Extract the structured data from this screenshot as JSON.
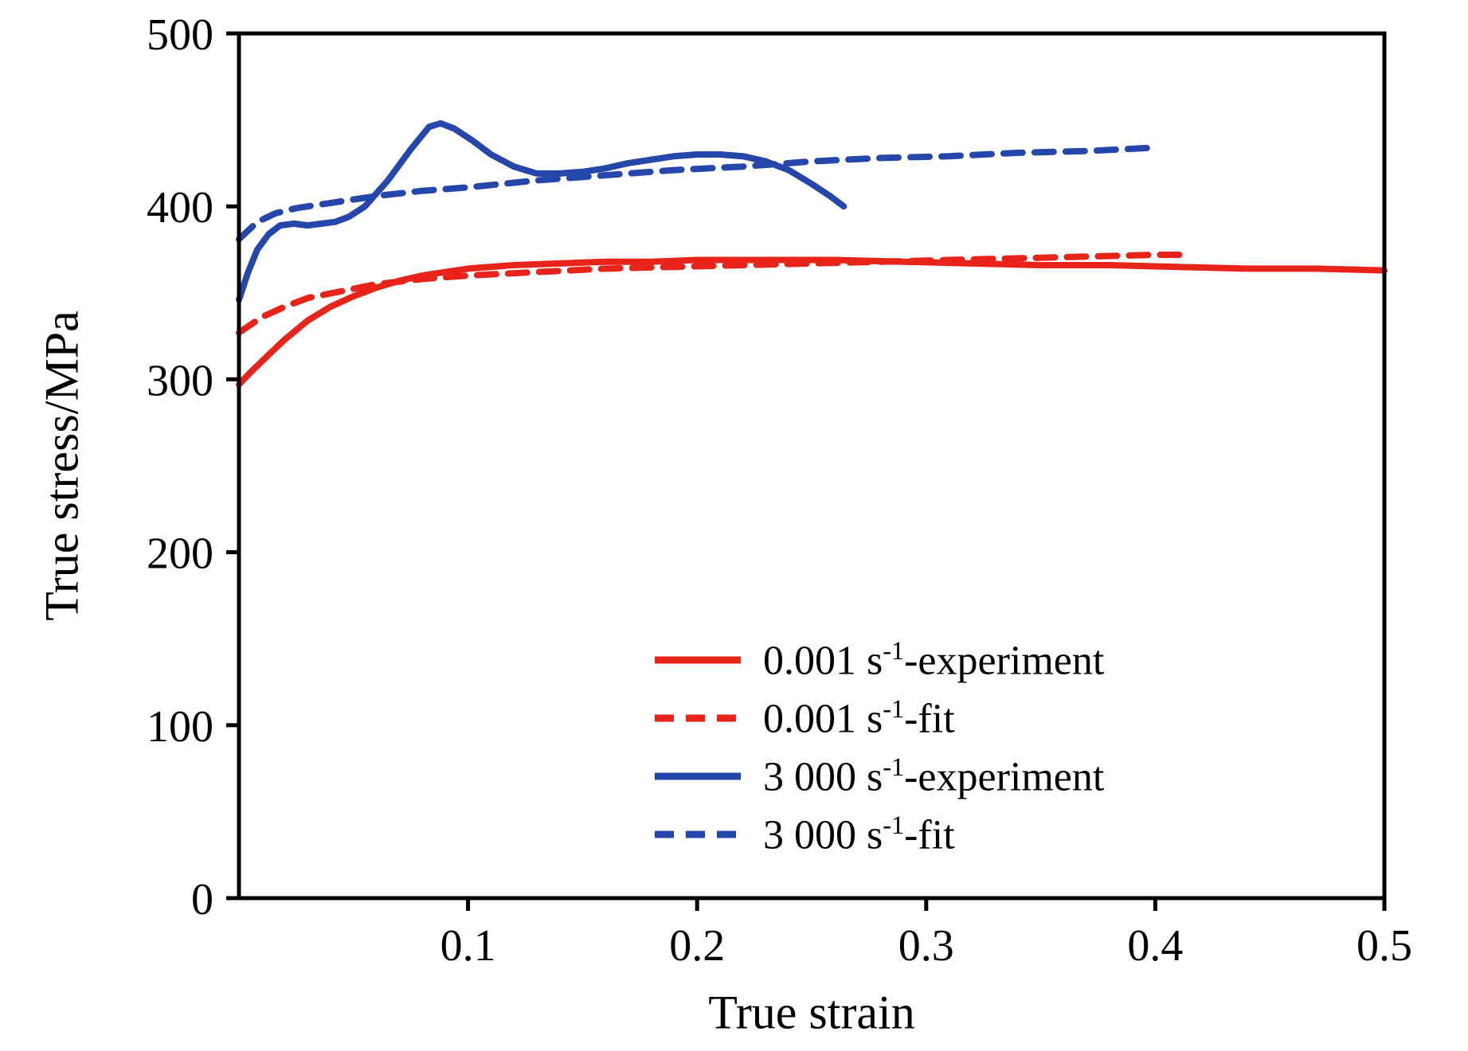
{
  "figure": {
    "background": "#ffffff",
    "axis_color": "#000000"
  },
  "chart_data": {
    "type": "line",
    "title": "",
    "xlabel": "True strain",
    "ylabel": "True stress/MPa",
    "xlim": [
      0,
      0.5
    ],
    "ylim": [
      0,
      500
    ],
    "x_ticks": [
      0.1,
      0.2,
      0.3,
      0.4,
      0.5
    ],
    "x_tick_labels": [
      "0.1",
      "0.2",
      "0.3",
      "0.4",
      "0.5"
    ],
    "y_ticks": [
      0,
      100,
      200,
      300,
      400,
      500
    ],
    "y_tick_labels": [
      "0",
      "100",
      "200",
      "300",
      "400",
      "500"
    ],
    "grid": false,
    "legend_position": "inside lower right",
    "series": [
      {
        "name": "0.001 s⁻¹-experiment",
        "label_parts": {
          "pre": "0.001 s",
          "sup": "-1",
          "post": "-experiment"
        },
        "color": "#e8231a",
        "dash": false,
        "points": [
          [
            0,
            297
          ],
          [
            0.005,
            304
          ],
          [
            0.012,
            313
          ],
          [
            0.02,
            323
          ],
          [
            0.03,
            334
          ],
          [
            0.04,
            342
          ],
          [
            0.05,
            348
          ],
          [
            0.06,
            353
          ],
          [
            0.07,
            357
          ],
          [
            0.08,
            360
          ],
          [
            0.09,
            362
          ],
          [
            0.1,
            364
          ],
          [
            0.12,
            366
          ],
          [
            0.14,
            367
          ],
          [
            0.16,
            368
          ],
          [
            0.18,
            368
          ],
          [
            0.2,
            369
          ],
          [
            0.23,
            369
          ],
          [
            0.26,
            369
          ],
          [
            0.29,
            368
          ],
          [
            0.32,
            367
          ],
          [
            0.35,
            366
          ],
          [
            0.38,
            366
          ],
          [
            0.41,
            365
          ],
          [
            0.44,
            364
          ],
          [
            0.47,
            364
          ],
          [
            0.5,
            363
          ]
        ]
      },
      {
        "name": "0.001 s⁻¹-fit",
        "label_parts": {
          "pre": "0.001 s",
          "sup": "-1",
          "post": "-fit"
        },
        "color": "#e8231a",
        "dash": true,
        "points": [
          [
            0,
            327
          ],
          [
            0.01,
            336
          ],
          [
            0.02,
            342
          ],
          [
            0.03,
            347
          ],
          [
            0.045,
            351
          ],
          [
            0.06,
            355
          ],
          [
            0.08,
            358
          ],
          [
            0.1,
            360
          ],
          [
            0.13,
            362
          ],
          [
            0.16,
            364
          ],
          [
            0.19,
            365
          ],
          [
            0.22,
            366
          ],
          [
            0.25,
            367
          ],
          [
            0.28,
            368
          ],
          [
            0.31,
            369
          ],
          [
            0.34,
            370
          ],
          [
            0.37,
            371
          ],
          [
            0.4,
            372
          ],
          [
            0.415,
            372
          ]
        ]
      },
      {
        "name": "3 000 s⁻¹-experiment",
        "label_parts": {
          "pre": "3 000 s",
          "sup": "-1",
          "post": "-experiment"
        },
        "color": "#2546aa",
        "dash": false,
        "points": [
          [
            0,
            346
          ],
          [
            0.004,
            362
          ],
          [
            0.008,
            375
          ],
          [
            0.013,
            384
          ],
          [
            0.018,
            389
          ],
          [
            0.024,
            390
          ],
          [
            0.03,
            389
          ],
          [
            0.036,
            390
          ],
          [
            0.042,
            391
          ],
          [
            0.048,
            394
          ],
          [
            0.055,
            400
          ],
          [
            0.065,
            415
          ],
          [
            0.075,
            433
          ],
          [
            0.083,
            446
          ],
          [
            0.088,
            448
          ],
          [
            0.094,
            445
          ],
          [
            0.102,
            438
          ],
          [
            0.11,
            430
          ],
          [
            0.12,
            423
          ],
          [
            0.13,
            419
          ],
          [
            0.14,
            419
          ],
          [
            0.15,
            420
          ],
          [
            0.16,
            422
          ],
          [
            0.17,
            425
          ],
          [
            0.18,
            427
          ],
          [
            0.19,
            429
          ],
          [
            0.2,
            430
          ],
          [
            0.21,
            430
          ],
          [
            0.22,
            429
          ],
          [
            0.23,
            426
          ],
          [
            0.24,
            421
          ],
          [
            0.25,
            413
          ],
          [
            0.258,
            406
          ],
          [
            0.264,
            400
          ]
        ]
      },
      {
        "name": "3 000 s⁻¹-fit",
        "label_parts": {
          "pre": "3 000 s",
          "sup": "-1",
          "post": "-fit"
        },
        "color": "#2546aa",
        "dash": true,
        "points": [
          [
            0,
            381
          ],
          [
            0.008,
            391
          ],
          [
            0.016,
            396
          ],
          [
            0.025,
            399
          ],
          [
            0.04,
            402
          ],
          [
            0.06,
            406
          ],
          [
            0.08,
            409
          ],
          [
            0.1,
            411
          ],
          [
            0.13,
            415
          ],
          [
            0.16,
            418
          ],
          [
            0.19,
            421
          ],
          [
            0.22,
            423
          ],
          [
            0.25,
            426
          ],
          [
            0.28,
            428
          ],
          [
            0.31,
            429
          ],
          [
            0.34,
            431
          ],
          [
            0.37,
            432
          ],
          [
            0.4,
            434
          ]
        ]
      }
    ]
  }
}
